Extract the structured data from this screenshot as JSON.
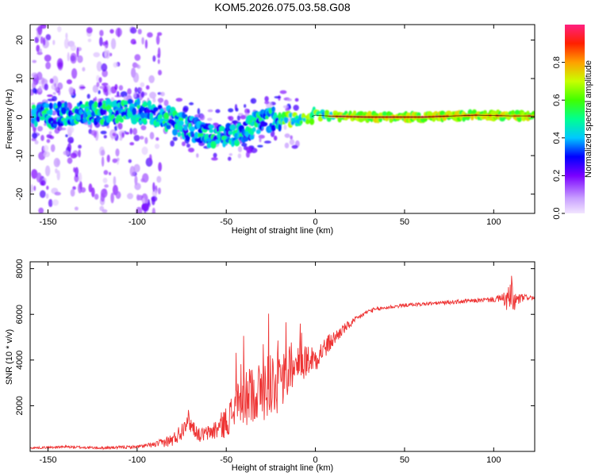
{
  "title": "KOM5.2026.075.03.58.G08",
  "chart_data": [
    {
      "type": "heatmap",
      "title": "KOM5.2026.075.03.58.G08",
      "xlabel": "Height of straight line (km)",
      "ylabel": "Frequency (Hz)",
      "xlim": [
        -160,
        123
      ],
      "ylim": [
        -25,
        24
      ],
      "x_ticks": [
        -150,
        -100,
        -50,
        0,
        50,
        100
      ],
      "y_ticks": [
        -20,
        -10,
        0,
        10,
        20
      ],
      "colorbar": {
        "label": "Normalized spectral amplitude",
        "range": [
          0,
          1
        ],
        "ticks": [
          0.0,
          0.2,
          0.4,
          0.6,
          0.8
        ]
      },
      "ridge": {
        "description": "dominant Doppler frequency vs height",
        "x": [
          -155,
          -140,
          -120,
          -100,
          -90,
          -80,
          -70,
          -60,
          -50,
          -40,
          -30,
          -20,
          -10,
          0,
          10,
          30,
          60,
          90,
          110,
          123
        ],
        "y": [
          0.5,
          0.5,
          1,
          1.5,
          1,
          -1,
          -3,
          -4.5,
          -5,
          -3.5,
          -1,
          0,
          -1,
          0.5,
          0.2,
          0,
          0,
          0.5,
          0.3,
          0.3
        ]
      }
    },
    {
      "type": "line",
      "xlabel": "Height of straight line (km)",
      "ylabel": "SNR (10 * v/v)",
      "xlim": [
        -160,
        123
      ],
      "ylim": [
        0,
        8300
      ],
      "x_ticks": [
        -150,
        -100,
        -50,
        0,
        50,
        100
      ],
      "y_ticks": [
        2000,
        4000,
        6000,
        8000
      ],
      "series": [
        {
          "name": "SNR",
          "color": "#ee3333",
          "x": [
            -160,
            -140,
            -120,
            -100,
            -90,
            -80,
            -75,
            -72,
            -70,
            -65,
            -60,
            -55,
            -50,
            -45,
            -40,
            -35,
            -30,
            -25,
            -20,
            -15,
            -10,
            -5,
            0,
            5,
            10,
            15,
            20,
            25,
            30,
            40,
            50,
            60,
            70,
            80,
            90,
            100,
            105,
            108,
            110,
            112,
            115,
            120,
            123
          ],
          "y": [
            150,
            200,
            150,
            200,
            300,
            500,
            900,
            1500,
            1200,
            700,
            800,
            1000,
            1300,
            1900,
            2200,
            2600,
            2600,
            3100,
            2900,
            3500,
            3700,
            4000,
            4100,
            4500,
            4900,
            5300,
            5600,
            5900,
            6150,
            6300,
            6400,
            6450,
            6500,
            6550,
            6600,
            6650,
            6700,
            6600,
            6800,
            6500,
            6700,
            6750,
            6700
          ],
          "noise": [
            40,
            60,
            60,
            70,
            120,
            300,
            400,
            500,
            400,
            300,
            350,
            500,
            700,
            900,
            1200,
            1300,
            1400,
            1500,
            1300,
            1100,
            900,
            700,
            600,
            500,
            350,
            250,
            180,
            120,
            100,
            90,
            80,
            80,
            80,
            90,
            90,
            120,
            200,
            600,
            900,
            600,
            200,
            100,
            100
          ]
        }
      ]
    }
  ]
}
